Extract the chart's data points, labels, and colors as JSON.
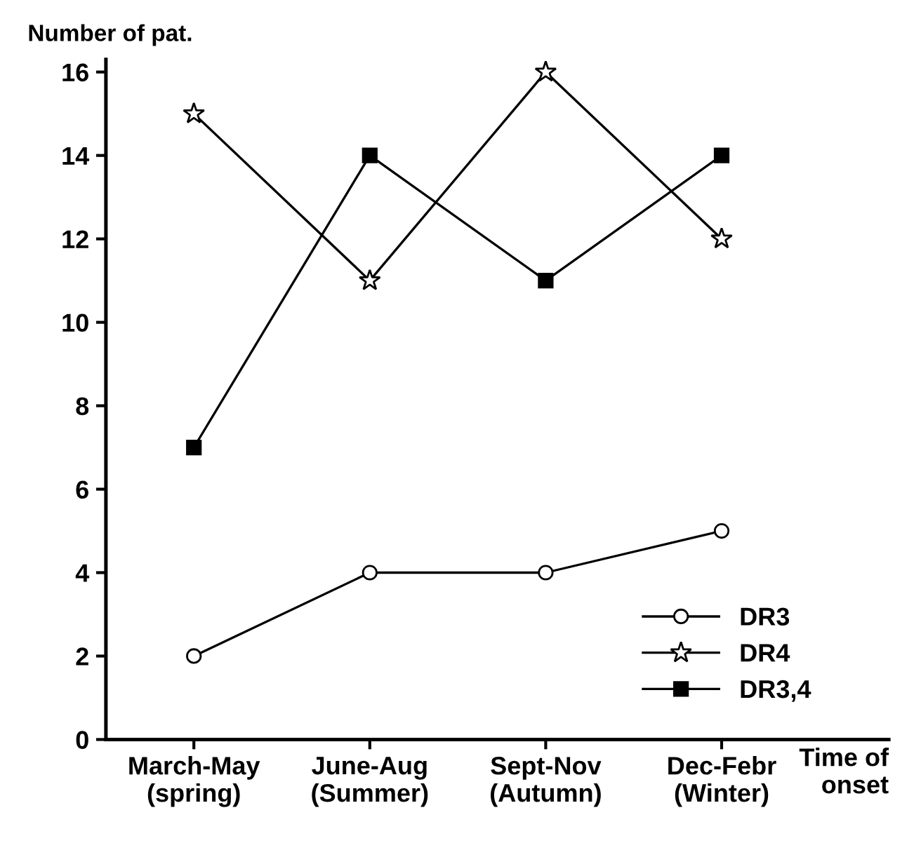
{
  "chart_data": {
    "type": "line",
    "ylabel": "Number of pat.",
    "xlabel": "Time of\nonset",
    "categories": [
      "March-May\n(spring)",
      "June-Aug\n(Summer)",
      "Sept-Nov\n(Autumn)",
      "Dec-Febr\n(Winter)"
    ],
    "series": [
      {
        "name": "DR3",
        "color": "#000000",
        "marker": "circle",
        "values": [
          2,
          4,
          4,
          5
        ]
      },
      {
        "name": "DR4",
        "color": "#000000",
        "marker": "star",
        "values": [
          15,
          11,
          16,
          12
        ]
      },
      {
        "name": "DR3,4",
        "color": "#000000",
        "marker": "square",
        "values": [
          7,
          14,
          11,
          14
        ]
      }
    ],
    "ylim": [
      0,
      16.3
    ],
    "yticks": [
      0,
      2,
      4,
      6,
      8,
      10,
      12,
      14,
      16
    ],
    "grid": false,
    "legend": "bottom right",
    "line_style": "solid"
  }
}
